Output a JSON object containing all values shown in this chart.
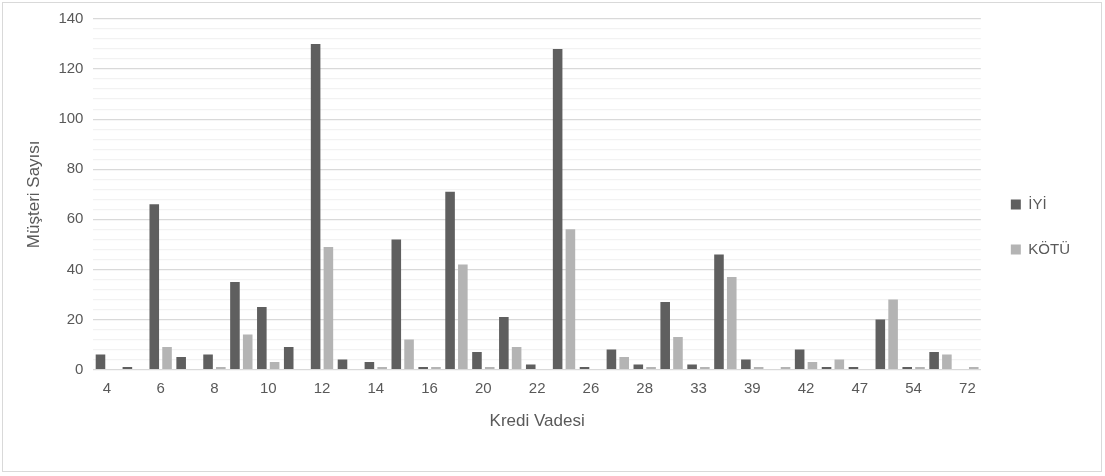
{
  "chart_data": {
    "type": "bar",
    "xlabel": "Kredi Vadesi",
    "ylabel": "Müşteri Sayısı",
    "categories": [
      "4",
      null,
      "6",
      null,
      "8",
      null,
      "10",
      null,
      "12",
      null,
      "14",
      null,
      "16",
      null,
      "20",
      null,
      "22",
      null,
      "26",
      null,
      "28",
      null,
      "33",
      null,
      "39",
      null,
      "42",
      null,
      "47",
      null,
      "54",
      null,
      "72"
    ],
    "series": [
      {
        "name": "İYİ",
        "color": "#5f5f5f",
        "values": [
          6,
          1,
          66,
          5,
          6,
          35,
          25,
          9,
          130,
          4,
          3,
          52,
          1,
          71,
          7,
          21,
          2,
          128,
          1,
          8,
          2,
          27,
          2,
          46,
          4,
          0,
          8,
          1,
          1,
          20,
          1,
          7,
          0
        ]
      },
      {
        "name": "KÖTÜ",
        "color": "#b4b4b4",
        "values": [
          0,
          0,
          9,
          0,
          1,
          14,
          3,
          0,
          49,
          0,
          1,
          12,
          1,
          42,
          1,
          9,
          0,
          56,
          0,
          5,
          1,
          13,
          1,
          37,
          1,
          1,
          3,
          4,
          0,
          28,
          1,
          6,
          1
        ]
      }
    ],
    "ylim": [
      0,
      140
    ],
    "yticks": [
      0,
      {
        "value": 4,
        "label": null
      },
      {
        "value": 8,
        "label": null
      },
      {
        "value": 12,
        "label": null
      },
      {
        "value": 16,
        "label": null
      },
      20,
      {
        "value": 24,
        "label": null
      },
      {
        "value": 28,
        "label": null
      },
      {
        "value": 32,
        "label": null
      },
      {
        "value": 36,
        "label": null
      },
      40,
      {
        "value": 44,
        "label": null
      },
      {
        "value": 48,
        "label": null
      },
      {
        "value": 52,
        "label": null
      },
      {
        "value": 56,
        "label": null
      },
      60,
      {
        "value": 64,
        "label": null
      },
      {
        "value": 68,
        "label": null
      },
      {
        "value": 72,
        "label": null
      },
      {
        "value": 76,
        "label": null
      },
      80,
      {
        "value": 84,
        "label": null
      },
      {
        "value": 88,
        "label": null
      },
      {
        "value": 92,
        "label": null
      },
      {
        "value": 96,
        "label": null
      },
      100,
      {
        "value": 104,
        "label": null
      },
      {
        "value": 108,
        "label": null
      },
      {
        "value": 112,
        "label": null
      },
      {
        "value": 116,
        "label": null
      },
      120,
      {
        "value": 124,
        "label": null
      },
      {
        "value": 128,
        "label": null
      },
      {
        "value": 132,
        "label": null
      },
      {
        "value": 136,
        "label": null
      },
      140
    ],
    "grid": "y",
    "legend": "right"
  }
}
